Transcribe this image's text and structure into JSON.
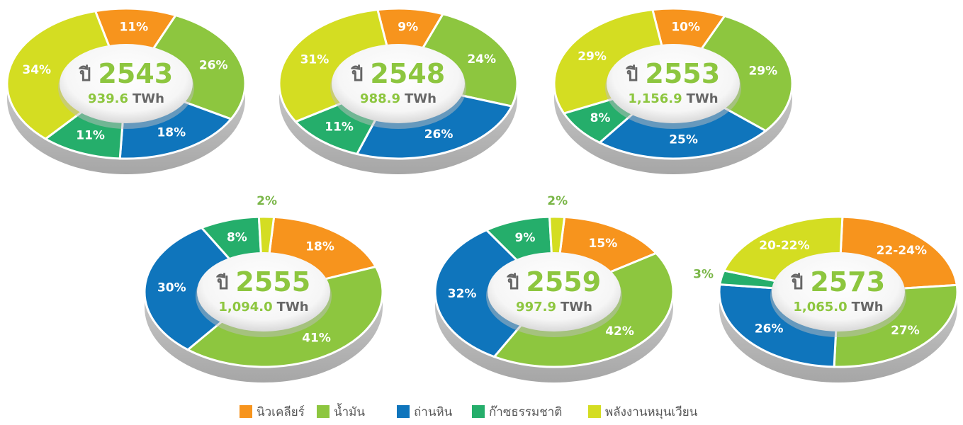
{
  "chart_data": [
    {
      "type": "donut",
      "title_prefix": "ปี",
      "year": "2543",
      "total": "939.6",
      "unit": "TWh",
      "categories": [
        "นิวเคลียร์",
        "น้ำมัน",
        "ถ่านหิน",
        "ก๊าซธรรมชาติ",
        "พลังงานหมุนเวียน"
      ],
      "colors": [
        "#f7941d",
        "#8dc63f",
        "#0f75bc",
        "#25ae6b",
        "#d4dd22"
      ],
      "values": [
        11,
        26,
        18,
        11,
        34
      ],
      "value_labels": [
        "11%",
        "26%",
        "18%",
        "11%",
        "34%"
      ]
    },
    {
      "type": "donut",
      "title_prefix": "ปี",
      "year": "2548",
      "total": "988.9",
      "unit": "TWh",
      "categories": [
        "นิวเคลียร์",
        "น้ำมัน",
        "ถ่านหิน",
        "ก๊าซธรรมชาติ",
        "พลังงานหมุนเวียน"
      ],
      "colors": [
        "#f7941d",
        "#8dc63f",
        "#0f75bc",
        "#25ae6b",
        "#d4dd22"
      ],
      "values": [
        9,
        24,
        26,
        11,
        31
      ],
      "value_labels": [
        "9%",
        "24%",
        "26%",
        "11%",
        "31%"
      ]
    },
    {
      "type": "donut",
      "title_prefix": "ปี",
      "year": "2553",
      "total": "1,156.9",
      "unit": "TWh",
      "categories": [
        "นิวเคลียร์",
        "น้ำมัน",
        "ถ่านหิน",
        "ก๊าซธรรมชาติ",
        "พลังงานหมุนเวียน"
      ],
      "colors": [
        "#f7941d",
        "#8dc63f",
        "#0f75bc",
        "#25ae6b",
        "#d4dd22"
      ],
      "values": [
        10,
        29,
        25,
        8,
        29
      ],
      "value_labels": [
        "10%",
        "29%",
        "25%",
        "8%",
        "29%"
      ]
    },
    {
      "type": "donut",
      "title_prefix": "ปี",
      "year": "2555",
      "total": "1,094.0",
      "unit": "TWh",
      "categories": [
        "นิวเคลียร์",
        "น้ำมัน",
        "ถ่านหิน",
        "ก๊าซธรรมชาติ",
        "พลังงานหมุนเวียน"
      ],
      "colors": [
        "#f7941d",
        "#8dc63f",
        "#0f75bc",
        "#25ae6b",
        "#d4dd22"
      ],
      "values": [
        18,
        41,
        30,
        8,
        2
      ],
      "value_labels": [
        "18%",
        "41%",
        "30%",
        "8%",
        "2%"
      ]
    },
    {
      "type": "donut",
      "title_prefix": "ปี",
      "year": "2559",
      "total": "997.9",
      "unit": "TWh",
      "categories": [
        "นิวเคลียร์",
        "น้ำมัน",
        "ถ่านหิน",
        "ก๊าซธรรมชาติ",
        "พลังงานหมุนเวียน"
      ],
      "colors": [
        "#f7941d",
        "#8dc63f",
        "#0f75bc",
        "#25ae6b",
        "#d4dd22"
      ],
      "values": [
        15,
        42,
        32,
        9,
        2
      ],
      "value_labels": [
        "15%",
        "42%",
        "32%",
        "9%",
        "2%"
      ]
    },
    {
      "type": "donut",
      "title_prefix": "ปี",
      "year": "2573",
      "total": "1,065.0",
      "unit": "TWh",
      "categories": [
        "นิวเคลียร์",
        "น้ำมัน",
        "ถ่านหิน",
        "ก๊าซธรรมชาติ",
        "พลังงานหมุนเวียน"
      ],
      "colors": [
        "#f7941d",
        "#8dc63f",
        "#0f75bc",
        "#25ae6b",
        "#d4dd22"
      ],
      "values": [
        23,
        27,
        26,
        3,
        21
      ],
      "value_labels": [
        "22-24%",
        "27%",
        "26%",
        "3%",
        "20-22%"
      ]
    }
  ]
}
